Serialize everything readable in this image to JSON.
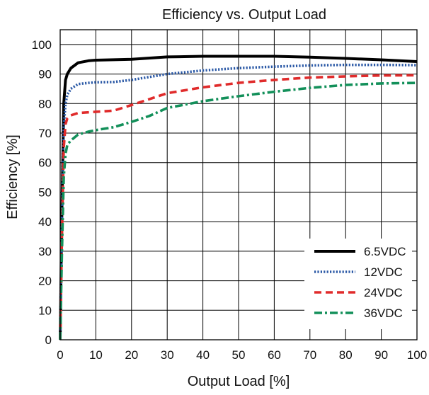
{
  "chart_data": {
    "type": "line",
    "title": "Efficiency vs. Output Load",
    "xlabel": "Output Load [%]",
    "ylabel": "Efficiency [%]",
    "xlim": [
      0,
      100
    ],
    "ylim": [
      0,
      105
    ],
    "xticks": [
      0,
      10,
      20,
      30,
      40,
      50,
      60,
      70,
      80,
      90,
      100
    ],
    "yticks": [
      0,
      10,
      20,
      30,
      40,
      50,
      60,
      70,
      80,
      90,
      100
    ],
    "grid": true,
    "legend_position": "bottom-right",
    "series": [
      {
        "name": "6.5VDC",
        "color": "#000000",
        "style": "solid",
        "points": [
          [
            0,
            0
          ],
          [
            0.5,
            45
          ],
          [
            1,
            80
          ],
          [
            1.5,
            88
          ],
          [
            2,
            90
          ],
          [
            3,
            92
          ],
          [
            5,
            93.8
          ],
          [
            8,
            94.5
          ],
          [
            10,
            94.7
          ],
          [
            20,
            95
          ],
          [
            30,
            95.8
          ],
          [
            40,
            96
          ],
          [
            50,
            96
          ],
          [
            60,
            96
          ],
          [
            70,
            95.7
          ],
          [
            80,
            95.3
          ],
          [
            90,
            94.8
          ],
          [
            100,
            94.2
          ]
        ]
      },
      {
        "name": "12VDC",
        "color": "#2b59a6",
        "style": "dotted",
        "points": [
          [
            0,
            0
          ],
          [
            0.5,
            40
          ],
          [
            1,
            72
          ],
          [
            1.5,
            80
          ],
          [
            2,
            83
          ],
          [
            3,
            85
          ],
          [
            5,
            86.6
          ],
          [
            8,
            87
          ],
          [
            10,
            87.2
          ],
          [
            15,
            87.3
          ],
          [
            20,
            88
          ],
          [
            30,
            90
          ],
          [
            40,
            91.2
          ],
          [
            50,
            92
          ],
          [
            60,
            92.5
          ],
          [
            70,
            92.9
          ],
          [
            80,
            93.1
          ],
          [
            90,
            93.1
          ],
          [
            100,
            93
          ]
        ]
      },
      {
        "name": "24VDC",
        "color": "#e02b2b",
        "style": "dashed",
        "points": [
          [
            0,
            0
          ],
          [
            0.5,
            35
          ],
          [
            1,
            65
          ],
          [
            1.5,
            73
          ],
          [
            2,
            75
          ],
          [
            3,
            76
          ],
          [
            5,
            76.8
          ],
          [
            10,
            77.2
          ],
          [
            15,
            77.6
          ],
          [
            20,
            79.5
          ],
          [
            30,
            83.5
          ],
          [
            40,
            85.5
          ],
          [
            50,
            87
          ],
          [
            60,
            88
          ],
          [
            70,
            88.8
          ],
          [
            80,
            89.2
          ],
          [
            90,
            89.5
          ],
          [
            100,
            89.6
          ]
        ]
      },
      {
        "name": "36VDC",
        "color": "#13905a",
        "style": "dashdot",
        "points": [
          [
            0,
            0
          ],
          [
            0.5,
            30
          ],
          [
            1,
            55
          ],
          [
            1.5,
            63
          ],
          [
            2,
            66
          ],
          [
            3,
            67.5
          ],
          [
            5,
            69.5
          ],
          [
            8,
            70.5
          ],
          [
            10,
            71
          ],
          [
            15,
            72
          ],
          [
            20,
            73.8
          ],
          [
            25,
            75.8
          ],
          [
            30,
            78.5
          ],
          [
            40,
            80.8
          ],
          [
            50,
            82.5
          ],
          [
            60,
            84
          ],
          [
            70,
            85.3
          ],
          [
            80,
            86.3
          ],
          [
            90,
            86.8
          ],
          [
            100,
            87
          ]
        ]
      }
    ]
  }
}
